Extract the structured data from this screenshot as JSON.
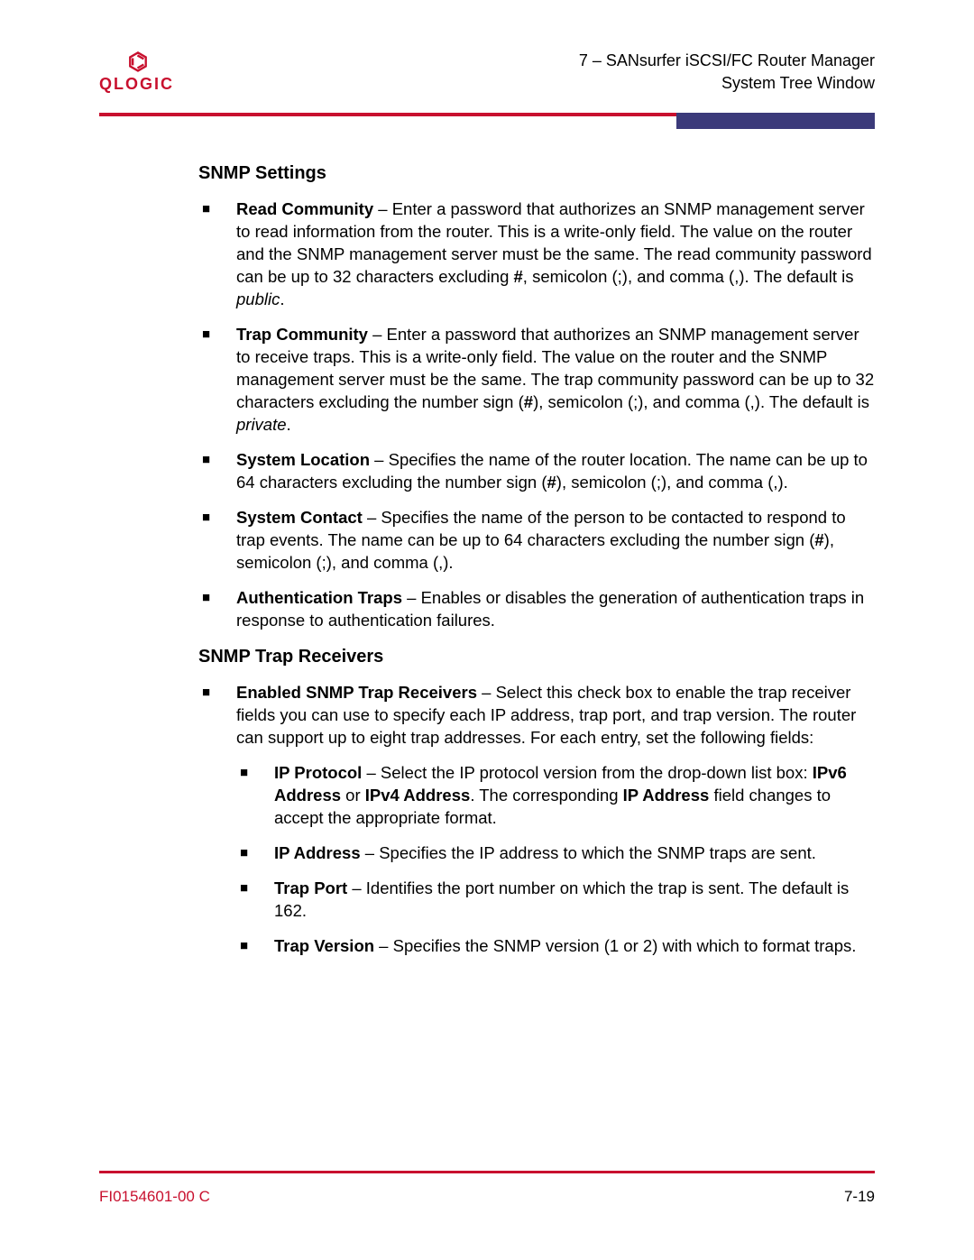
{
  "header": {
    "logo_text": "QLOGIC",
    "line1": "7 – SANsurfer iSCSI/FC Router Manager",
    "line2": "System Tree Window"
  },
  "colors": {
    "accent_red": "#c8102e",
    "purple_tab": "#3b3a7a",
    "text": "#000000",
    "background": "#ffffff"
  },
  "sections": {
    "snmp_settings": {
      "title": "SNMP Settings",
      "items": {
        "read_community": {
          "label": "Read Community",
          "sep": " – ",
          "text1": "Enter a password that authorizes an SNMP management server to read information from the router. This is a write-only field. The value on the router and the SNMP management server must be the same. The read community password can be up to 32 characters excluding ",
          "bold1": "#",
          "text2": ", semicolon (;), and comma (,). The default is ",
          "italic1": "public",
          "tail": "."
        },
        "trap_community": {
          "label": "Trap Community",
          "sep": " – ",
          "text1": "Enter a password that authorizes an SNMP management server to receive traps. This is a write-only field. The value on the router and the SNMP management server must be the same. The trap community password can be up to 32 characters excluding the number sign (",
          "bold1": "#",
          "text2": "), semicolon (;), and comma (,). The default is ",
          "italic1": "private",
          "tail": "."
        },
        "system_location": {
          "label": "System Location",
          "sep": " – ",
          "text1": "Specifies the name of the router location. The name can be up to 64 characters excluding the number sign (",
          "bold1": "#",
          "text2": "), semicolon (;), and comma (,)."
        },
        "system_contact": {
          "label": "System Contact",
          "sep": " – ",
          "text1": "Specifies the name of the person to be contacted to respond to trap events. The name can be up to 64 characters excluding the number sign (",
          "bold1": "#",
          "text2": "), semicolon (;), and comma (,)."
        },
        "auth_traps": {
          "label": "Authentication Traps",
          "sep": " – ",
          "text1": "Enables or disables the generation of authentication traps in response to authentication failures."
        }
      }
    },
    "snmp_trap_receivers": {
      "title": "SNMP Trap Receivers",
      "enabled": {
        "label": "Enabled SNMP Trap Receivers",
        "sep": " – ",
        "text1": "Select this check box to enable the trap receiver fields you can use to specify each IP address, trap port, and trap version. The router can support up to eight trap addresses. For each entry, set the following fields:"
      },
      "sub": {
        "ip_protocol": {
          "label": "IP Protocol",
          "sep": " – ",
          "text1": "Select the IP protocol version from the drop-down list box: ",
          "bold1": "IPv6 Address",
          "text2": " or ",
          "bold2": "IPv4 Address",
          "text3": ". The corresponding ",
          "bold3": "IP Address",
          "text4": " field changes to accept the appropriate format."
        },
        "ip_address": {
          "label": "IP Address",
          "sep": " – ",
          "text1": "Specifies the IP address to which the SNMP traps are sent."
        },
        "trap_port": {
          "label": "Trap Port",
          "sep": " – ",
          "text1": "Identifies the port number on which the trap is sent. The default is 162."
        },
        "trap_version": {
          "label": "Trap Version",
          "sep": " – ",
          "text1": "Specifies the SNMP version (1 or 2) with which to format traps."
        }
      }
    }
  },
  "footer": {
    "left": "FI0154601-00  C",
    "right": "7-19"
  }
}
